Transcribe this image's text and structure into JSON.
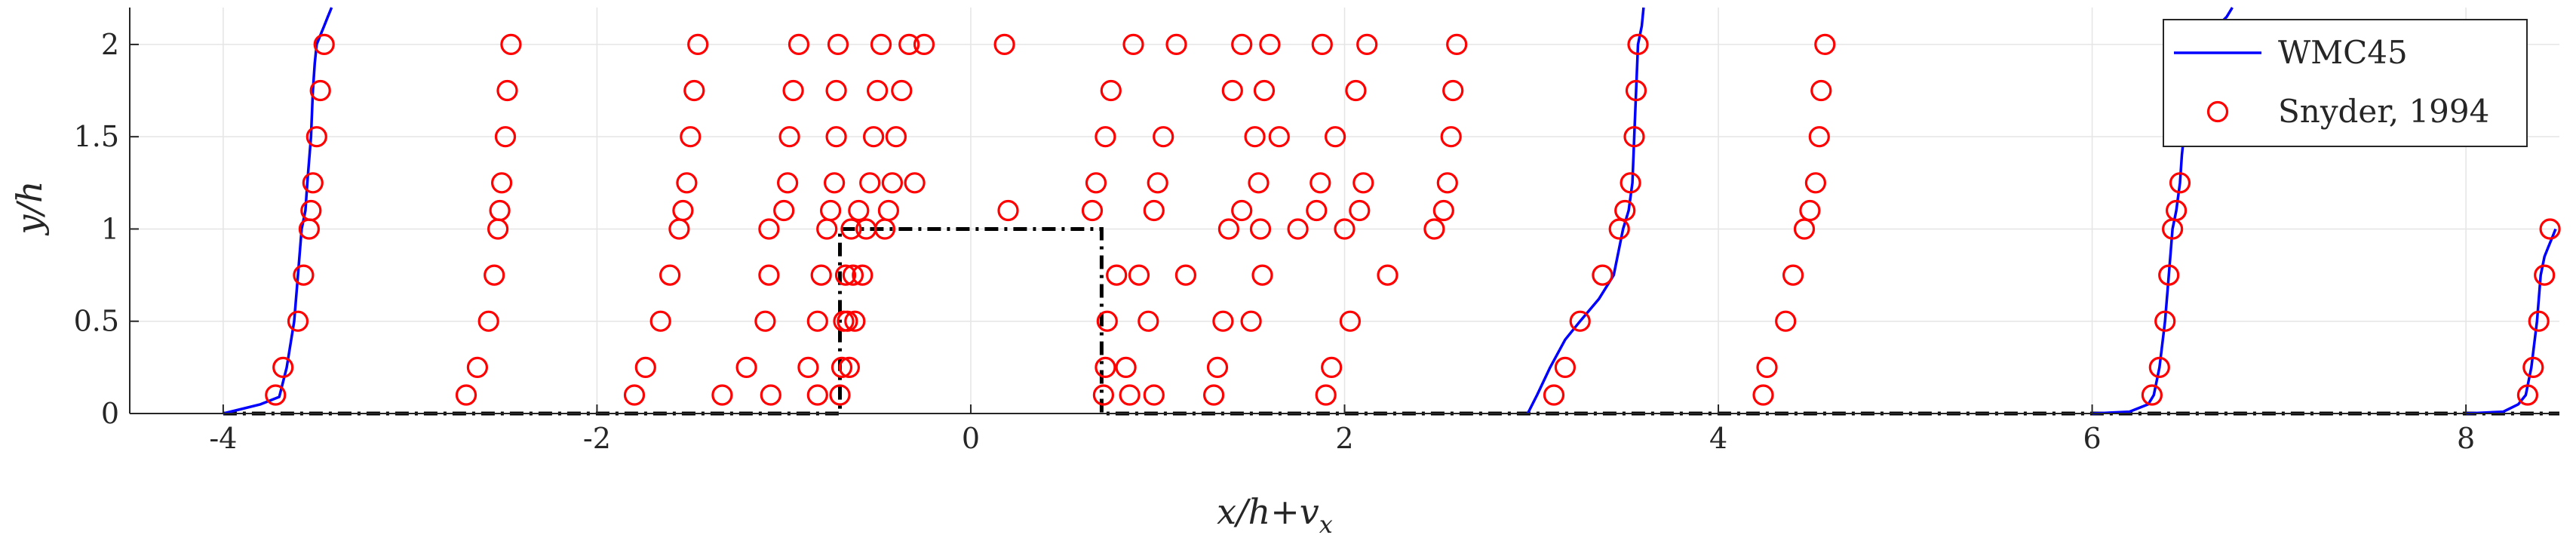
{
  "chart_data": {
    "type": "line",
    "xlabel": "x/h+v",
    "xlabel_sub": "x",
    "ylabel": "y/h",
    "xlim": [
      -4.5,
      8.5
    ],
    "ylim": [
      0,
      2.2
    ],
    "xticks": [
      -4,
      -2,
      0,
      2,
      4,
      6,
      8
    ],
    "yticks": [
      0,
      0.5,
      1,
      1.5,
      2
    ],
    "grid": true,
    "legend_placement": "top-right",
    "colors": {
      "line": "#0000ff",
      "markers": "#ff0000",
      "geometry": "#000000",
      "grid": "#e5e5e5",
      "axis": "#262626"
    },
    "legend": [
      {
        "label": "WMC45",
        "kind": "line"
      },
      {
        "label": "Snyder, 1994",
        "kind": "marker"
      }
    ],
    "geometry_outline": {
      "x": [
        -4.0,
        -0.7,
        -0.7,
        0.7,
        0.7,
        8.5
      ],
      "y": [
        0,
        0,
        1,
        1,
        0,
        0
      ]
    },
    "series": [
      {
        "name": "WMC45",
        "kind": "line",
        "segments": [
          {
            "x": [
              -4.0,
              -3.8,
              -3.7,
              -3.66,
              -3.62,
              -3.6,
              -3.58,
              -3.56,
              -3.55,
              -3.53,
              -3.52,
              -3.51,
              -3.5,
              -3.48,
              -3.46,
              -3.44,
              -3.42
            ],
            "y": [
              0,
              0.05,
              0.09,
              0.25,
              0.5,
              0.75,
              1.0,
              1.1,
              1.25,
              1.5,
              1.75,
              1.9,
              2.0,
              2.05,
              2.1,
              2.15,
              2.2
            ]
          },
          {
            "x": [
              2.98,
              3.03,
              3.1,
              3.18,
              3.26,
              3.36,
              3.44,
              3.49,
              3.52,
              3.54,
              3.55,
              3.56,
              3.57,
              3.58,
              3.59,
              3.6
            ],
            "y": [
              0,
              0.1,
              0.25,
              0.4,
              0.5,
              0.62,
              0.75,
              1.0,
              1.1,
              1.25,
              1.5,
              1.75,
              2.0,
              2.05,
              2.1,
              2.2
            ]
          },
          {
            "x": [
              6.0,
              6.2,
              6.3,
              6.33,
              6.36,
              6.39,
              6.41,
              6.43,
              6.45,
              6.47,
              6.48,
              6.5,
              6.52,
              6.55,
              6.6,
              6.67,
              6.72,
              6.75
            ],
            "y": [
              0,
              0.01,
              0.05,
              0.1,
              0.25,
              0.5,
              0.75,
              1.0,
              1.1,
              1.25,
              1.4,
              1.6,
              1.8,
              1.9,
              2.0,
              2.1,
              2.15,
              2.2
            ]
          },
          {
            "x": [
              8.0,
              8.2,
              8.28,
              8.32,
              8.35,
              8.38,
              8.4,
              8.42,
              8.44,
              8.46,
              8.48
            ],
            "y": [
              0,
              0.01,
              0.05,
              0.1,
              0.25,
              0.5,
              0.75,
              0.85,
              0.9,
              0.95,
              1.0
            ]
          }
        ]
      },
      {
        "name": "Snyder, 1994",
        "kind": "scatter",
        "x": [
          -3.72,
          -3.68,
          -3.6,
          -3.57,
          -3.54,
          -3.53,
          -3.52,
          -3.5,
          -3.48,
          -3.46,
          -2.7,
          -2.64,
          -2.58,
          -2.55,
          -2.53,
          -2.52,
          -2.51,
          -2.49,
          -2.48,
          -2.46,
          -1.8,
          -1.74,
          -1.66,
          -1.61,
          -1.56,
          -1.54,
          -1.52,
          -1.5,
          -1.48,
          -1.46,
          -1.33,
          -1.2,
          -1.1,
          -1.08,
          -1.08,
          -1.07,
          -1.0,
          -0.98,
          -0.97,
          -0.95,
          -0.92,
          -0.87,
          -0.82,
          -0.82,
          -0.8,
          -0.77,
          -0.75,
          -0.73,
          -0.72,
          -0.72,
          -0.71,
          -0.7,
          -0.69,
          -0.68,
          -0.67,
          -0.66,
          -0.65,
          -0.64,
          -0.63,
          -0.62,
          -0.6,
          -0.58,
          -0.56,
          -0.54,
          -0.52,
          -0.5,
          -0.48,
          -0.46,
          -0.44,
          -0.42,
          -0.4,
          -0.37,
          -0.33,
          -0.3,
          -0.25,
          0.2,
          0.18,
          0.65,
          0.67,
          0.71,
          0.72,
          0.72,
          0.73,
          0.75,
          0.78,
          0.83,
          0.85,
          0.87,
          0.9,
          0.95,
          0.98,
          0.98,
          1.0,
          1.03,
          1.1,
          1.15,
          1.3,
          1.32,
          1.35,
          1.38,
          1.4,
          1.45,
          1.45,
          1.5,
          1.52,
          1.54,
          1.55,
          1.56,
          1.57,
          1.6,
          1.65,
          1.75,
          1.85,
          1.87,
          1.88,
          1.9,
          1.93,
          1.95,
          2.0,
          2.03,
          2.06,
          2.08,
          2.1,
          2.12,
          2.23,
          2.48,
          2.53,
          2.55,
          2.57,
          2.58,
          2.6,
          3.12,
          3.18,
          3.26,
          3.38,
          3.47,
          3.5,
          3.53,
          3.55,
          3.56,
          3.57,
          4.24,
          4.26,
          4.36,
          4.4,
          4.46,
          4.49,
          4.52,
          4.54,
          4.55,
          4.57,
          6.32,
          6.36,
          6.39,
          6.41,
          6.43,
          6.45,
          6.47,
          8.33,
          8.36,
          8.39,
          8.42,
          8.45
        ],
        "y": [
          0.1,
          0.25,
          0.5,
          0.75,
          1.0,
          1.1,
          1.25,
          1.5,
          1.75,
          2.0,
          0.1,
          0.25,
          0.5,
          0.75,
          1.0,
          1.1,
          1.25,
          1.5,
          1.75,
          2.0,
          0.1,
          0.25,
          0.5,
          0.75,
          1.0,
          1.1,
          1.25,
          1.5,
          1.75,
          2.0,
          0.1,
          0.25,
          0.5,
          0.75,
          1.0,
          0.1,
          1.1,
          1.25,
          1.5,
          1.75,
          2.0,
          0.25,
          0.5,
          0.1,
          0.75,
          1.0,
          1.1,
          1.25,
          1.5,
          1.75,
          2.0,
          0.1,
          0.25,
          0.5,
          0.75,
          0.5,
          0.25,
          1.0,
          0.75,
          0.5,
          1.1,
          0.75,
          1.0,
          1.25,
          1.5,
          1.75,
          2.0,
          1.0,
          1.1,
          1.25,
          1.5,
          1.75,
          2.0,
          1.25,
          2.0,
          1.1,
          2.0,
          1.1,
          1.25,
          0.1,
          0.25,
          1.5,
          0.5,
          1.75,
          0.75,
          0.25,
          0.1,
          2.0,
          0.75,
          0.5,
          0.1,
          1.1,
          1.25,
          1.5,
          2.0,
          0.75,
          0.1,
          0.25,
          0.5,
          1.0,
          1.75,
          2.0,
          1.1,
          0.5,
          1.5,
          1.25,
          1.0,
          0.75,
          1.75,
          2.0,
          1.5,
          1.0,
          1.1,
          1.25,
          2.0,
          0.1,
          0.25,
          1.5,
          1.0,
          0.5,
          1.75,
          1.1,
          1.25,
          2.0,
          0.75,
          1.0,
          1.1,
          1.25,
          1.5,
          1.75,
          2.0,
          0.1,
          0.25,
          0.5,
          0.75,
          1.0,
          1.1,
          1.25,
          1.5,
          1.75,
          2.0,
          0.1,
          0.25,
          0.5,
          0.75,
          1.0,
          1.1,
          1.25,
          1.5,
          1.75,
          2.0,
          0.1,
          0.25,
          0.5,
          0.75,
          1.0,
          1.1,
          1.25,
          0.1,
          0.25,
          0.5,
          0.75,
          1.0
        ]
      }
    ]
  }
}
